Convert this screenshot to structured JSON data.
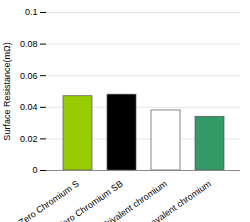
{
  "chart_data": {
    "type": "bar",
    "y_label": "Surface Resistance(mΩ)",
    "categories": [
      "Zero Chromium S",
      "Zero Chromium SB",
      "Trivalent chromium",
      "hexavalent chromium"
    ],
    "values": [
      0.047,
      0.048,
      0.038,
      0.034
    ],
    "colors": [
      "#99cc00",
      "#000000",
      "#ffffff",
      "#339966"
    ],
    "ylim": [
      0,
      0.1
    ],
    "yticks": [
      0,
      0.02,
      0.04,
      0.06,
      0.08,
      0.1
    ],
    "grid": true
  }
}
